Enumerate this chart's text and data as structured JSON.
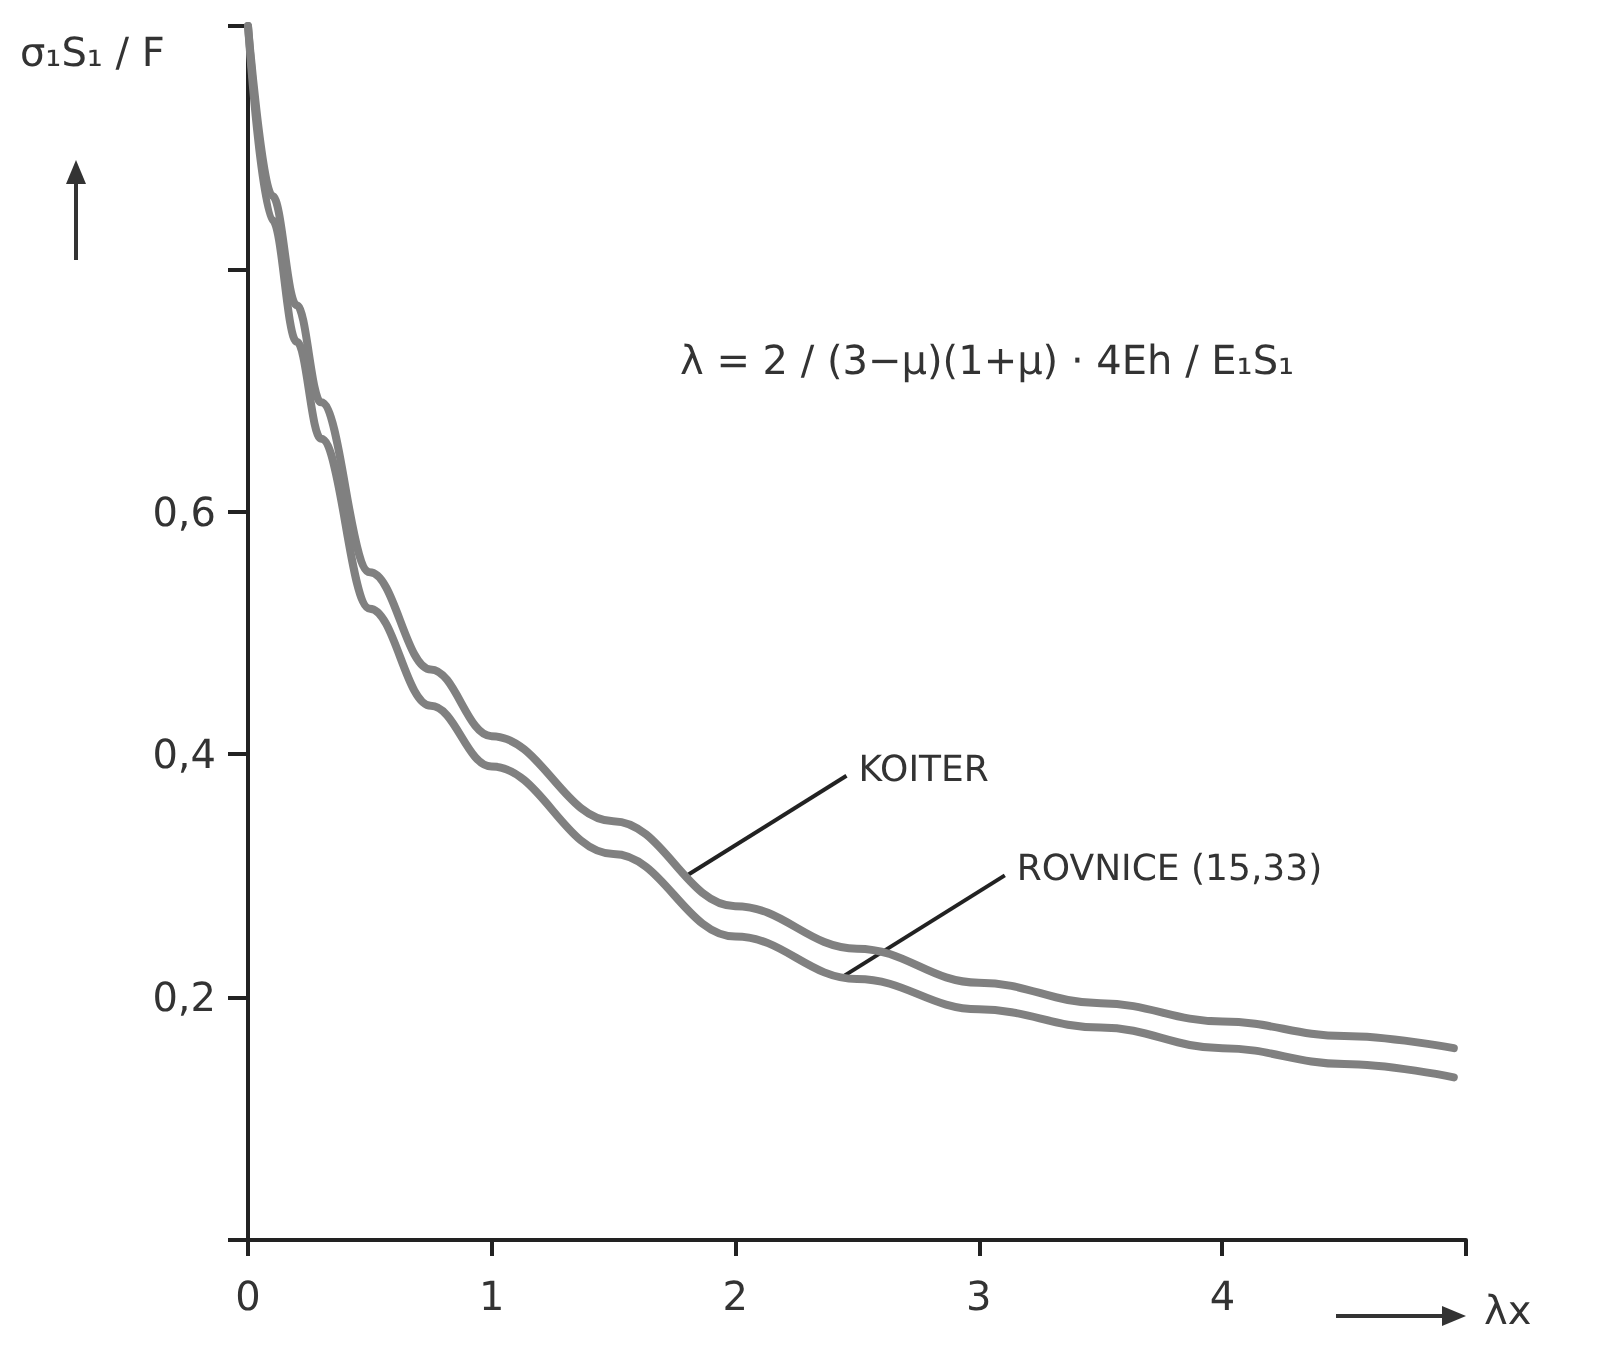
{
  "chart_data": {
    "type": "line",
    "xlabel": "λx",
    "ylabel": "σ₁S₁ / F",
    "xlim": [
      0,
      5
    ],
    "xticks": [
      0,
      1,
      2,
      3,
      4,
      {
        "value": 5,
        "label": null
      }
    ],
    "ylim": [
      0,
      1.0
    ],
    "yticks": [
      {
        "value": 0,
        "label": null
      },
      {
        "value": 0.2,
        "label": "0,2"
      },
      {
        "value": 0.4,
        "label": "0,4"
      },
      {
        "value": 0.6,
        "label": "0,6"
      },
      {
        "value": 0.8,
        "label": null
      },
      {
        "value": 1.0,
        "label": null
      }
    ],
    "series": [
      {
        "color": "#808080",
        "x": [
          0,
          0.1,
          0.2,
          0.3,
          0.5,
          0.75,
          1,
          1.5,
          2,
          2.5,
          3,
          3.5,
          4,
          4.5,
          4.95
        ],
        "values": [
          1.0,
          0.86,
          0.77,
          0.69,
          0.55,
          0.47,
          0.415,
          0.345,
          0.275,
          0.24,
          0.212,
          0.195,
          0.18,
          0.168,
          0.158
        ]
      },
      {
        "color": "#808080",
        "x": [
          0,
          0.1,
          0.2,
          0.3,
          0.5,
          0.75,
          1,
          1.5,
          2,
          2.5,
          3,
          3.5,
          4,
          4.5,
          4.95
        ],
        "values": [
          1.0,
          0.84,
          0.74,
          0.66,
          0.52,
          0.44,
          0.39,
          0.318,
          0.25,
          0.215,
          0.19,
          0.175,
          0.158,
          0.145,
          0.134
        ]
      }
    ],
    "annotations": [
      {
        "text": "KOITER",
        "x": 1.8,
        "y": 0.3
      },
      {
        "text": "ROVNICE (15,33)",
        "x": 2.45,
        "y": 0.218
      },
      "λ = 2 / (3−μ)(1+μ) · 4Eh / E₁S₁"
    ],
    "grid": false,
    "marker": "none",
    "line_style": "solid"
  }
}
